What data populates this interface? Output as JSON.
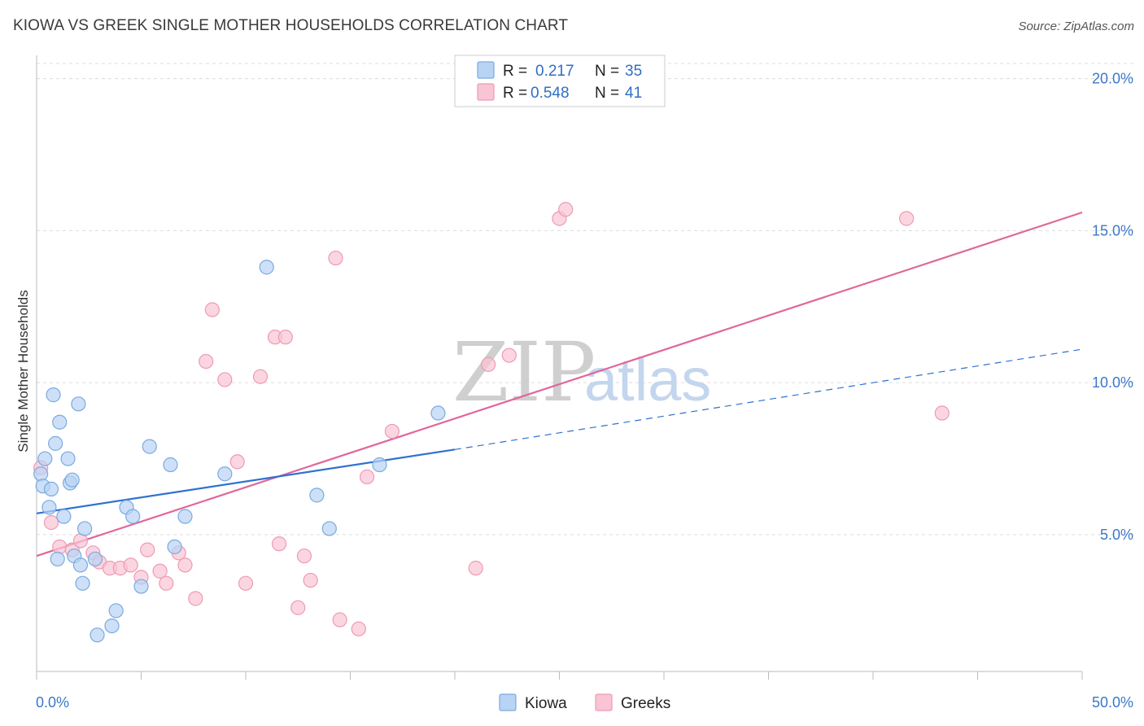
{
  "title": "KIOWA VS GREEK SINGLE MOTHER HOUSEHOLDS CORRELATION CHART",
  "source": "Source: ZipAtlas.com",
  "colors": {
    "kiowa_fill": "#b8d3f3",
    "kiowa_stroke": "#7aaae0",
    "kiowa_line": "#2f72d0",
    "greeks_fill": "#f9c4d4",
    "greeks_stroke": "#ee9ab4",
    "greeks_line": "#e0679a",
    "tick_text": "#3b78c8",
    "grid": "#dcdcdc"
  },
  "legend": {
    "kiowa": {
      "r_label": "R =",
      "r_value": "0.217",
      "n_label": "N =",
      "n_value": "35"
    },
    "greeks": {
      "r_label": "R =",
      "r_value": "0.548",
      "n_label": "N =",
      "n_value": "41"
    }
  },
  "watermark": {
    "zip": "ZIP",
    "atlas": "atlas"
  },
  "chart_data": {
    "type": "scatter",
    "title": "KIOWA VS GREEK SINGLE MOTHER HOUSEHOLDS CORRELATION CHART",
    "xlabel": "",
    "ylabel": "Single Mother Households",
    "xlim": [
      0,
      50
    ],
    "ylim": [
      0.5,
      20.5
    ],
    "x_tick_labels": [
      "0.0%",
      "50.0%"
    ],
    "y_ticks": [
      5,
      10,
      15,
      20
    ],
    "y_tick_labels": [
      "5.0%",
      "10.0%",
      "15.0%",
      "20.0%"
    ],
    "legend_position": "bottom-center",
    "series": [
      {
        "name": "Kiowa",
        "points": [
          [
            0.2,
            7.0
          ],
          [
            0.3,
            6.6
          ],
          [
            0.4,
            7.5
          ],
          [
            0.6,
            5.9
          ],
          [
            0.7,
            6.5
          ],
          [
            0.8,
            9.6
          ],
          [
            0.9,
            8.0
          ],
          [
            1.0,
            4.2
          ],
          [
            1.1,
            8.7
          ],
          [
            1.3,
            5.6
          ],
          [
            1.5,
            7.5
          ],
          [
            1.6,
            6.7
          ],
          [
            1.7,
            6.8
          ],
          [
            1.8,
            4.3
          ],
          [
            2.0,
            9.3
          ],
          [
            2.1,
            4.0
          ],
          [
            2.2,
            3.4
          ],
          [
            2.3,
            5.2
          ],
          [
            2.8,
            4.2
          ],
          [
            2.9,
            1.7
          ],
          [
            3.6,
            2.0
          ],
          [
            3.8,
            2.5
          ],
          [
            4.3,
            5.9
          ],
          [
            4.6,
            5.6
          ],
          [
            5.0,
            3.3
          ],
          [
            5.4,
            7.9
          ],
          [
            6.4,
            7.3
          ],
          [
            6.6,
            4.6
          ],
          [
            7.1,
            5.6
          ],
          [
            9.0,
            7.0
          ],
          [
            11.0,
            13.8
          ],
          [
            13.4,
            6.3
          ],
          [
            14.0,
            5.2
          ],
          [
            16.4,
            7.3
          ],
          [
            19.2,
            9.0
          ]
        ],
        "trend": {
          "x": [
            0,
            20
          ],
          "y": [
            5.7,
            7.8
          ],
          "dashed_extension": {
            "x": [
              20,
              50
            ],
            "y": [
              7.8,
              11.1
            ]
          }
        }
      },
      {
        "name": "Greeks",
        "points": [
          [
            0.2,
            7.2
          ],
          [
            0.7,
            5.4
          ],
          [
            1.1,
            4.6
          ],
          [
            1.7,
            4.5
          ],
          [
            2.1,
            4.8
          ],
          [
            2.7,
            4.4
          ],
          [
            3.0,
            4.1
          ],
          [
            3.5,
            3.9
          ],
          [
            4.0,
            3.9
          ],
          [
            4.5,
            4.0
          ],
          [
            5.0,
            3.6
          ],
          [
            5.3,
            4.5
          ],
          [
            5.9,
            3.8
          ],
          [
            6.2,
            3.4
          ],
          [
            6.8,
            4.4
          ],
          [
            7.1,
            4.0
          ],
          [
            7.6,
            2.9
          ],
          [
            8.1,
            10.7
          ],
          [
            8.4,
            12.4
          ],
          [
            9.0,
            10.1
          ],
          [
            9.6,
            7.4
          ],
          [
            10.0,
            3.4
          ],
          [
            10.7,
            10.2
          ],
          [
            11.4,
            11.5
          ],
          [
            11.6,
            4.7
          ],
          [
            11.9,
            11.5
          ],
          [
            12.5,
            2.6
          ],
          [
            12.8,
            4.3
          ],
          [
            13.1,
            3.5
          ],
          [
            14.3,
            14.1
          ],
          [
            14.5,
            2.2
          ],
          [
            15.4,
            1.9
          ],
          [
            15.8,
            6.9
          ],
          [
            17.0,
            8.4
          ],
          [
            21.0,
            3.9
          ],
          [
            21.6,
            10.6
          ],
          [
            22.6,
            10.9
          ],
          [
            25.0,
            15.4
          ],
          [
            25.3,
            15.7
          ],
          [
            41.6,
            15.4
          ],
          [
            43.3,
            9.0
          ]
        ],
        "trend": {
          "x": [
            0,
            50
          ],
          "y": [
            4.3,
            15.6
          ]
        }
      }
    ]
  }
}
